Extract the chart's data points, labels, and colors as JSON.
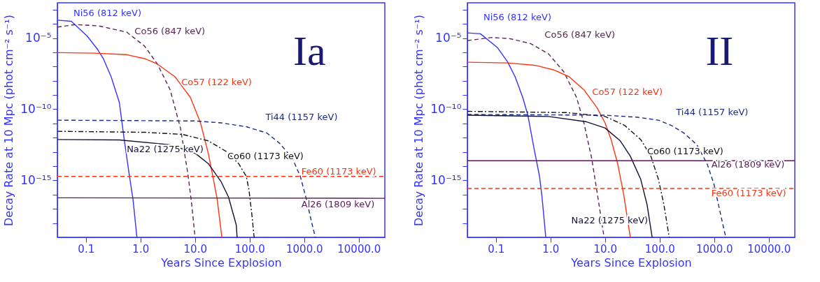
{
  "chart_data": [
    {
      "type": "line",
      "title": "Ia",
      "xlabel": "Years Since Explosion",
      "ylabel": "Decay Rate at 10 Mpc (phot cm⁻² s⁻¹)",
      "log": "xy",
      "xlim": [
        0.03,
        30000
      ],
      "ylim": [
        1e-19,
        0.003
      ],
      "xticks": [
        0.1,
        {
          "value": 1,
          "label": "1.0"
        },
        {
          "value": 10,
          "label": "10.0"
        },
        {
          "value": 100,
          "label": "100.0"
        },
        {
          "value": 1000,
          "label": "1000.0"
        },
        {
          "value": 10000,
          "label": "10000.0"
        }
      ],
      "yticks": [
        {
          "value": 0.001,
          "label": null
        },
        {
          "value": 0.0001,
          "label": null
        },
        {
          "value": 1e-05,
          "label": "10⁻⁵"
        },
        {
          "value": 1e-06,
          "label": null
        },
        {
          "value": 1e-07,
          "label": null
        },
        {
          "value": 1e-08,
          "label": null
        },
        {
          "value": 1e-09,
          "label": null
        },
        {
          "value": 1e-10,
          "label": "10⁻¹⁰"
        },
        {
          "value": 1e-11,
          "label": null
        },
        {
          "value": 1e-12,
          "label": null
        },
        {
          "value": 1e-13,
          "label": null
        },
        {
          "value": 1e-14,
          "label": null
        },
        {
          "value": 1e-15,
          "label": "10⁻¹⁵"
        },
        {
          "value": 1e-16,
          "label": null
        },
        {
          "value": 1e-17,
          "label": null
        },
        {
          "value": 1e-18,
          "label": null
        }
      ],
      "series": [
        {
          "name": "Ni56 (812 keV)",
          "color": "#3333ff",
          "line_style": "solid",
          "x": [
            0.03,
            0.054,
            0.105,
            0.16,
            0.21,
            0.29,
            0.41,
            0.5,
            0.62,
            0.73,
            0.86
          ],
          "values": [
            0.00018,
            0.00015,
            1.4e-05,
            1.8e-06,
            3.4e-07,
            1.9e-08,
            3e-10,
            9.1e-13,
            2.8e-15,
            4.5e-17,
            1e-19
          ]
        },
        {
          "name": "Co56 (847 keV)",
          "color": "#5a2458",
          "line_style": "dashed",
          "x": [
            0.03,
            0.065,
            0.17,
            0.56,
            1.19,
            2.04,
            3.5,
            5.4,
            7.4,
            8.7,
            10
          ],
          "values": [
            5.9e-05,
            8.9e-05,
            7.2e-05,
            2.6e-05,
            2.7e-06,
            1.5e-07,
            2.3e-09,
            4.8e-12,
            2.8e-15,
            2e-17,
            1e-19
          ]
        },
        {
          "name": "Co57 (122 keV)",
          "color": "#ff3311",
          "line_style": "solid",
          "x": [
            0.03,
            0.14,
            0.56,
            1.19,
            2.04,
            4.3,
            8.2,
            12.6,
            17.5,
            21.7,
            25.5,
            31
          ],
          "values": [
            9.5e-07,
            8.7e-07,
            6.8e-07,
            3.6e-07,
            1.5e-07,
            1.9e-08,
            6.8e-10,
            1.1e-11,
            7.8e-14,
            1.2e-15,
            4.5e-17,
            1e-19
          ]
        },
        {
          "name": "Ti44 (1157 keV)",
          "color": "#1a2a8a",
          "line_style": "dashed",
          "x": [
            0.03,
            10,
            30,
            87,
            209,
            355,
            610,
            850,
            1100,
            1370,
            1600
          ],
          "values": [
            1.7e-11,
            1.5e-11,
            1.1e-11,
            5.9e-12,
            2.1e-12,
            4e-13,
            3.4e-14,
            1.9e-15,
            4.5e-17,
            1.1e-18,
            1e-19
          ]
        },
        {
          "name": "Na22 (1275 keV)",
          "color": "#111133",
          "line_style": "solid",
          "x": [
            0.03,
            0.41,
            3.5,
            10.2,
            17.5,
            30,
            41,
            57,
            59
          ],
          "values": [
            7.4e-13,
            6.9e-13,
            3.2e-13,
            7.8e-14,
            1.5e-14,
            8.1e-16,
            6.8e-17,
            7.2e-19,
            1e-19
          ]
        },
        {
          "name": "Co60 (1173 keV)",
          "color": "#111111",
          "line_style": "dashdot",
          "x": [
            0.03,
            1.19,
            5.9,
            17.5,
            37,
            63,
            87,
            97,
            110,
            121
          ],
          "values": [
            2.8e-12,
            2.4e-12,
            1.7e-12,
            6e-13,
            1.1e-13,
            1.5e-14,
            1.9e-15,
            2.3e-16,
            3.8e-18,
            1e-19
          ]
        },
        {
          "name": "Fe60 (1173 keV)",
          "color": "#ff3311",
          "line_style": "dashed",
          "x": [
            0.03,
            30000
          ],
          "values": [
            1.9e-15,
            1.9e-15
          ]
        },
        {
          "name": "Al26 (1809 keV)",
          "color": "#5a1a5a",
          "line_style": "solid",
          "x": [
            0.03,
            30000
          ],
          "values": [
            6e-17,
            5.5e-17
          ]
        }
      ]
    },
    {
      "type": "line",
      "title": "II",
      "xlabel": "Years Since Explosion",
      "ylabel": "Decay Rate at 10 Mpc (phot cm⁻² s⁻¹)",
      "log": "xy",
      "xlim": [
        0.03,
        30000
      ],
      "ylim": [
        1e-19,
        0.003
      ],
      "xticks": [
        0.1,
        {
          "value": 1,
          "label": "1.0"
        },
        {
          "value": 10,
          "label": "10.0"
        },
        {
          "value": 100,
          "label": "100.0"
        },
        {
          "value": 1000,
          "label": "1000.0"
        },
        {
          "value": 10000,
          "label": "10000.0"
        }
      ],
      "yticks": [
        {
          "value": 0.001,
          "label": null
        },
        {
          "value": 0.0001,
          "label": null
        },
        {
          "value": 1e-05,
          "label": "10⁻⁵"
        },
        {
          "value": 1e-06,
          "label": null
        },
        {
          "value": 1e-07,
          "label": null
        },
        {
          "value": 1e-08,
          "label": null
        },
        {
          "value": 1e-09,
          "label": null
        },
        {
          "value": 1e-10,
          "label": "10⁻¹⁰"
        },
        {
          "value": 1e-11,
          "label": null
        },
        {
          "value": 1e-12,
          "label": null
        },
        {
          "value": 1e-13,
          "label": null
        },
        {
          "value": 1e-14,
          "label": null
        },
        {
          "value": 1e-15,
          "label": "10⁻¹⁵"
        },
        {
          "value": 1e-16,
          "label": null
        },
        {
          "value": 1e-17,
          "label": null
        },
        {
          "value": 1e-18,
          "label": null
        }
      ],
      "series": [
        {
          "name": "Ni56 (812 keV)",
          "color": "#3333ff",
          "line_style": "solid",
          "x": [
            0.03,
            0.052,
            0.106,
            0.163,
            0.225,
            0.31,
            0.385,
            0.5,
            0.63,
            0.7,
            0.82
          ],
          "values": [
            2.3e-05,
            2e-05,
            2.2e-06,
            2.2e-07,
            1.9e-08,
            6.8e-10,
            3.8e-11,
            1.7e-13,
            1.9e-15,
            6.8e-17,
            1e-19
          ]
        },
        {
          "name": "Co56 (847 keV)",
          "color": "#5a2458",
          "line_style": "dashed",
          "x": [
            0.03,
            0.085,
            0.18,
            0.43,
            0.92,
            1.75,
            3.0,
            4.1,
            5.7,
            7.5,
            9.6
          ],
          "values": [
            6.6e-06,
            1.1e-05,
            9.1e-06,
            4.1e-06,
            7.8e-07,
            4.3e-08,
            6.8e-10,
            1.1e-11,
            3.4e-14,
            4.5e-17,
            1e-19
          ]
        },
        {
          "name": "Co57 (122 keV)",
          "color": "#ff3311",
          "line_style": "solid",
          "x": [
            0.03,
            0.163,
            0.53,
            1.13,
            2.2,
            4.1,
            7.1,
            10,
            12.9,
            17,
            22,
            29
          ],
          "values": [
            2e-07,
            1.8e-07,
            1.2e-07,
            5.9e-08,
            1.9e-08,
            2.3e-09,
            1.3e-10,
            1.1e-11,
            7.4e-13,
            1.5e-14,
            1e-16,
            1e-19
          ]
        },
        {
          "name": "Ti44 (1157 keV)",
          "color": "#1a2a8a",
          "line_style": "dashed",
          "x": [
            0.03,
            10,
            40,
            95,
            165,
            280,
            480,
            740,
            990,
            1200,
            1450,
            1630
          ],
          "values": [
            4.3e-11,
            3.8e-11,
            2.7e-11,
            1.7e-11,
            7.2e-12,
            2.1e-12,
            3.2e-13,
            1.5e-14,
            5.4e-16,
            1.9e-17,
            7.2e-19,
            1e-19
          ]
        },
        {
          "name": "Na22 (1275 keV)",
          "color": "#111133",
          "line_style": "solid",
          "x": [
            0.03,
            0.92,
            4.6,
            10,
            19,
            29,
            45,
            59,
            73
          ],
          "values": [
            3.8e-11,
            3.1e-11,
            1.3e-11,
            4.8e-12,
            6e-13,
            5.1e-14,
            1.2e-15,
            1.9e-17,
            1e-19
          ]
        },
        {
          "name": "Co60 (1173 keV)",
          "color": "#111111",
          "line_style": "dashdot",
          "x": [
            0.03,
            2.0,
            10,
            23,
            45,
            69,
            95,
            120,
            150
          ],
          "values": [
            7.1e-11,
            5.8e-11,
            3.1e-11,
            7.2e-12,
            7.4e-13,
            5.1e-14,
            1.2e-15,
            1.9e-17,
            1e-19
          ]
        },
        {
          "name": "Fe60 (1173 keV)",
          "color": "#ff3311",
          "line_style": "dashed",
          "x": [
            0.03,
            30000
          ],
          "values": [
            2.7e-16,
            2.7e-16
          ]
        },
        {
          "name": "Al26 (1809 keV)",
          "color": "#5a1a5a",
          "line_style": "solid",
          "x": [
            0.03,
            30000
          ],
          "values": [
            2.4e-14,
            2.4e-14
          ]
        }
      ]
    }
  ]
}
